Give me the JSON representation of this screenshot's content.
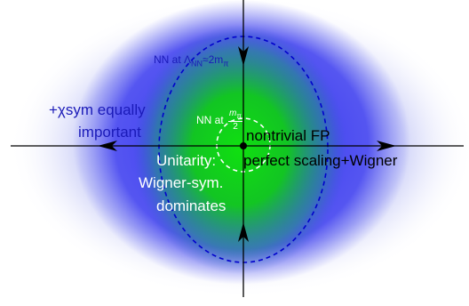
{
  "labels": {
    "chi_sym_line1": "+χsym equally",
    "chi_sym_line2": "important",
    "nn_outer_prefix": "NN at Λ",
    "nn_outer_sub": "NN",
    "nn_outer_suffix": "≈2m",
    "nn_outer_suffix_sub": "π",
    "nn_inner_prefix": "NN at",
    "nn_inner_num": "m",
    "nn_inner_num_sub": "π",
    "nn_inner_den": "2",
    "nontrivial_fp": "nontrivial FP",
    "perfect_scaling": "perfect scaling+Wigner",
    "unitarity": "Unitarity:",
    "wigner_sym": "Wigner-sym.",
    "dominates": "dominates"
  },
  "colors": {
    "outer_halo": "#a8aef4",
    "blue_region": "#3c3cf0",
    "green_core": "#1ee01e",
    "outer_ellipse": "#0000cc",
    "inner_circle": "#ffffff",
    "axes": "#000000",
    "text_blue": "#1a1ab8",
    "text_white": "#ffffff",
    "text_black": "#000000"
  }
}
